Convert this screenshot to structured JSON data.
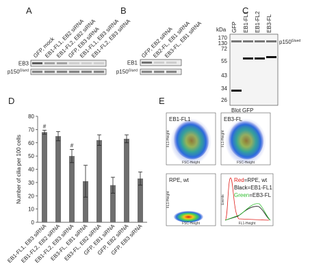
{
  "chart_data": {
    "type": "bar",
    "panel": "D",
    "ylabel": "Number of cilia per 100 cells",
    "categories": [
      "EB1-FL1, EB3 siRNA",
      "EB1-FL2, EB2 siRNA",
      "EB1-FL2, EB3 siRNA",
      "EB3-FL, EB1 siRNA",
      "EB3-FL, EB2 siRNA",
      "GFP, EB1 siRNA",
      "GFP, EB2 siRNA",
      "GFP, EB3 siRNA"
    ],
    "values": [
      68,
      65,
      50,
      31,
      62,
      28,
      63,
      33
    ],
    "errors": [
      1.5,
      3.5,
      5,
      12,
      4,
      6,
      3,
      5
    ],
    "markers": [
      "#",
      null,
      "#",
      null,
      null,
      null,
      null,
      null
    ],
    "color": "#6e6e6e",
    "ylim": [
      0,
      80
    ],
    "yticks": [
      0,
      10,
      20,
      30,
      40,
      50,
      60,
      70,
      80
    ]
  },
  "panels": {
    "A": {
      "label": "A",
      "lanes": [
        "GFP, mock",
        "EB1-FL1, EB2 siRNA",
        "EB1-FL2, EB2 siRNA",
        "GFP, EB3 siRNA",
        "EB1-FL1, EB3 siRNA",
        "EB1-FL2, EB3 siRNA"
      ],
      "rows": [
        {
          "base": "EB3"
        },
        {
          "base": "p150",
          "sup": "Glued"
        }
      ]
    },
    "B": {
      "label": "B",
      "lanes": [
        "GFP, EB2 siRNA",
        "EB2-FL, EB1 siRNA",
        "EB3-FL, EB1 siRNA"
      ],
      "rows": [
        {
          "base": "EB1"
        },
        {
          "base": "p150",
          "sup": "Glued"
        }
      ]
    },
    "C": {
      "label": "C",
      "unit": "kDa",
      "lanes": [
        "GFP",
        "EB1-FL1",
        "EB1-FL2",
        "EB3-FL"
      ],
      "markers": [
        "170",
        "130",
        "72",
        "55",
        "43",
        "34",
        "26"
      ],
      "band": {
        "base": "p150",
        "sup": "Glued"
      },
      "caption": "Blot GFP"
    },
    "E": {
      "label": "E",
      "plots": [
        "EB1-FL1",
        "EB3-FL",
        "RPE, wt"
      ],
      "xaxis": "FSC-Height",
      "yaxis": "FL1-Height",
      "hist_y": "Events",
      "hist_x": "FL1-Height",
      "legend": [
        {
          "key": "Red",
          "text": "=RPE, wt",
          "color": "#e0201b"
        },
        {
          "key": "Black",
          "text": "=EB1-FL1",
          "color": "#111111"
        },
        {
          "key": "Green",
          "text": "=EB3-FL",
          "color": "#2fbf2f"
        }
      ]
    }
  }
}
